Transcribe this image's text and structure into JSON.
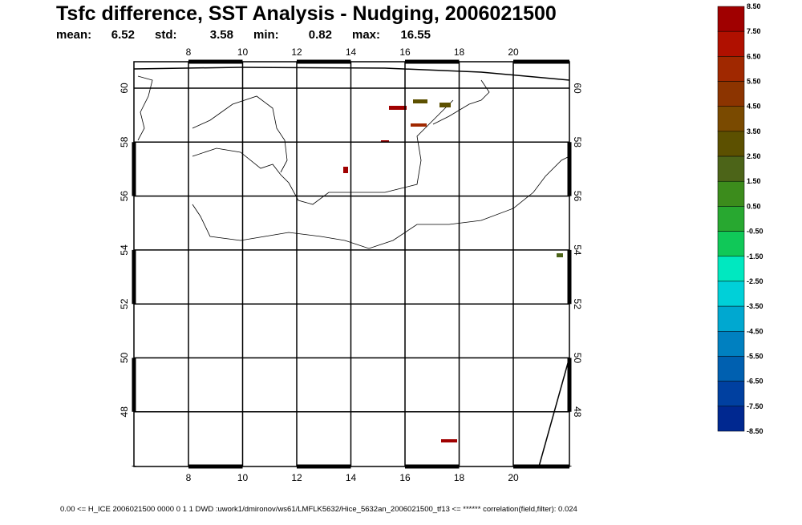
{
  "header": {
    "title": "Tsfc difference, SST Analysis - Nudging, 2006021500",
    "stats": [
      {
        "label": "mean:",
        "value": "6.52"
      },
      {
        "label": "std:",
        "value": "3.58"
      },
      {
        "label": "min:",
        "value": "0.82"
      },
      {
        "label": "max:",
        "value": "16.55"
      }
    ]
  },
  "map": {
    "x_ticks": [
      "8",
      "10",
      "12",
      "14",
      "16",
      "18",
      "20"
    ],
    "y_ticks": [
      "60",
      "58",
      "56",
      "54",
      "52",
      "50",
      "48"
    ]
  },
  "colorbar": {
    "labels": [
      "8.50",
      "7.50",
      "6.50",
      "5.50",
      "4.50",
      "3.50",
      "2.50",
      "1.50",
      "0.50",
      "-0.50",
      "-1.50",
      "-2.50",
      "-3.50",
      "-4.50",
      "-5.50",
      "-6.50",
      "-7.50",
      "-8.50"
    ],
    "colors": [
      "#a00000",
      "#b01000",
      "#a02800",
      "#8c3400",
      "#7a4a00",
      "#5c5000",
      "#4c6418",
      "#3c8c1c",
      "#28a830",
      "#10c858",
      "#00e8c0",
      "#00d0d8",
      "#00a8d0",
      "#0080c0",
      "#0060b0",
      "#0040a0",
      "#002890",
      "#100880",
      "#200060"
    ]
  },
  "footer": "0.00  <=  H_ICE 2006021500 0000 0 1 1 DWD :uwork1/dmironov/ws61/LMFLK5632/Hice_5632an_2006021500_tf13  <=  ******    correlation(field,filter): 0.024"
}
